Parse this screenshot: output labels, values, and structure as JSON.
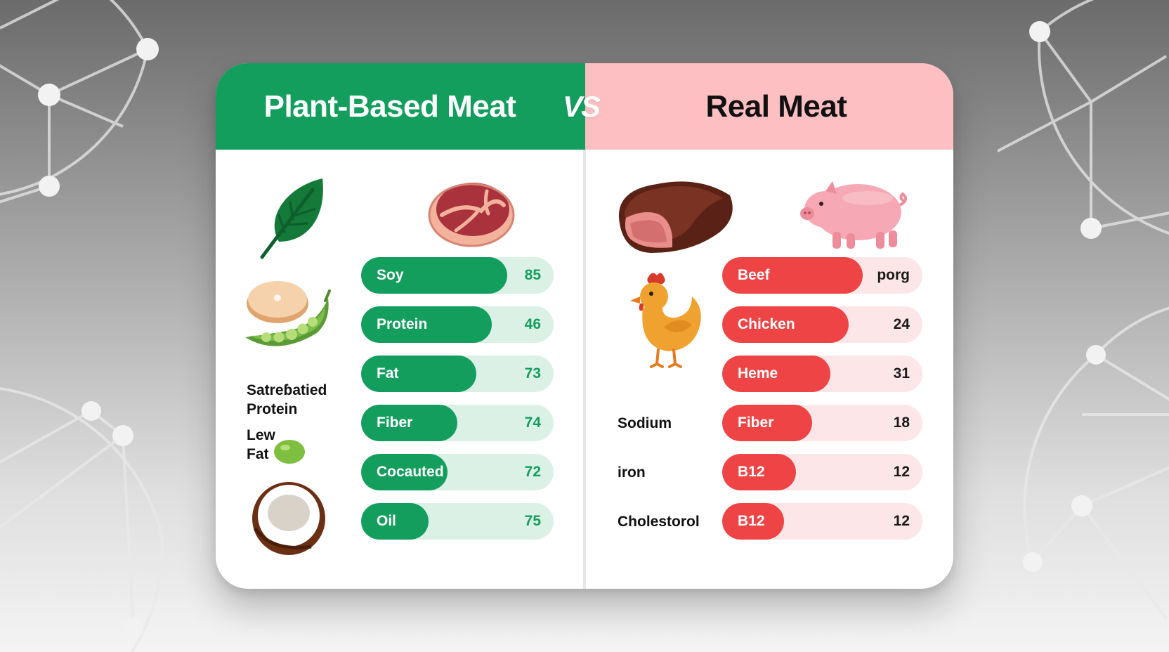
{
  "left_panel": {
    "title": "Plant-Based Meat",
    "color": "#149e5e",
    "bars": [
      {
        "label": "Soy",
        "value": "85",
        "fill": 0.76
      },
      {
        "label": "Protein",
        "value": "46",
        "fill": 0.68
      },
      {
        "label": "Fat",
        "value": "73",
        "fill": 0.6
      },
      {
        "label": "Fiber",
        "value": "74",
        "fill": 0.5
      },
      {
        "label": "Cocauted",
        "value": "72",
        "fill": 0.45
      },
      {
        "label": "Oil",
        "value": "75",
        "fill": 0.35
      }
    ],
    "side_labels": {
      "saturated_protein": [
        "Satreɓatied",
        "Protein"
      ],
      "low_fat": [
        "Lew",
        "Fat"
      ]
    }
  },
  "vs_label": "VS",
  "right_panel": {
    "title": "Real Meat",
    "color": "#ef4446",
    "bars": [
      {
        "label": "Beef",
        "value": "porg",
        "fill": 0.7
      },
      {
        "label": "Chicken",
        "value": "24",
        "fill": 0.63
      },
      {
        "label": "Heme",
        "value": "31",
        "fill": 0.54
      },
      {
        "label": "Fiber",
        "value": "18",
        "fill": 0.45
      },
      {
        "label": "B12",
        "value": "12",
        "fill": 0.37
      },
      {
        "label": "B12",
        "value": "12",
        "fill": 0.31
      }
    ],
    "side_labels": {
      "sodium": "Sodium",
      "iron": "iron",
      "cholesterol": "Cholestorol"
    }
  },
  "icons": [
    "leaf-icon",
    "ham-steak-icon",
    "mushroom-slice-icon",
    "pea-pod-icon",
    "green-pea-icon",
    "coconut-icon",
    "beef-steak-icon",
    "pig-icon",
    "chicken-icon"
  ]
}
